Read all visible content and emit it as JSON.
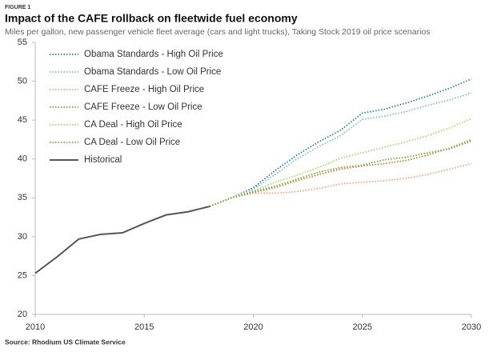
{
  "chart_data": {
    "type": "line",
    "figure_label": "FIGURE 1",
    "title": "Impact of the CAFE rollback on fleetwide fuel economy",
    "subtitle": "Miles per gallon, new passenger vehicle fleet average (cars and light trucks), Taking Stock 2019 oil price scenarios",
    "source": "Source: Rhodium US Climate Service",
    "x": [
      2010,
      2011,
      2012,
      2013,
      2014,
      2015,
      2016,
      2017,
      2018,
      2019,
      2020,
      2021,
      2022,
      2023,
      2024,
      2025,
      2026,
      2027,
      2028,
      2029,
      2030
    ],
    "xlim": [
      2010,
      2030
    ],
    "xticks": [
      2010,
      2015,
      2020,
      2025,
      2030
    ],
    "ylim": [
      20,
      55
    ],
    "yticks": [
      20,
      25,
      30,
      35,
      40,
      45,
      50,
      55
    ],
    "grid": false,
    "legend": "upper left",
    "series": [
      {
        "name": "Obama Standards - High Oil Price",
        "color": "#2a7ab0",
        "style": "dotted",
        "values": [
          null,
          null,
          null,
          null,
          null,
          null,
          null,
          null,
          33.9,
          35.0,
          36.3,
          38.5,
          40.5,
          42.2,
          43.7,
          45.9,
          46.4,
          47.2,
          48.1,
          49.1,
          50.3
        ]
      },
      {
        "name": "Obama Standards - Low Oil Price",
        "color": "#86b8dc",
        "style": "dotted",
        "values": [
          null,
          null,
          null,
          null,
          null,
          null,
          null,
          null,
          33.9,
          35.0,
          36.1,
          38.0,
          40.0,
          41.6,
          43.0,
          45.1,
          45.5,
          46.1,
          46.9,
          47.6,
          48.5
        ]
      },
      {
        "name": "CAFE Freeze - High Oil Price",
        "color": "#f4a582",
        "style": "dotted",
        "values": [
          null,
          null,
          null,
          null,
          null,
          null,
          null,
          null,
          33.9,
          35.0,
          35.6,
          35.6,
          35.8,
          36.2,
          36.8,
          37.0,
          37.2,
          37.5,
          38.0,
          38.7,
          39.4
        ]
      },
      {
        "name": "CAFE Freeze - Low Oil Price",
        "color": "#d9782d",
        "style": "dotted",
        "values": [
          null,
          null,
          null,
          null,
          null,
          null,
          null,
          null,
          33.9,
          35.0,
          35.7,
          36.3,
          37.2,
          38.0,
          38.7,
          39.1,
          39.4,
          39.8,
          40.5,
          41.4,
          42.5
        ]
      },
      {
        "name": "CA Deal - High Oil Price",
        "color": "#a6d96a",
        "style": "dotted",
        "values": [
          null,
          null,
          null,
          null,
          null,
          null,
          null,
          null,
          33.9,
          35.0,
          35.9,
          37.0,
          37.9,
          38.9,
          40.1,
          40.8,
          41.5,
          42.2,
          43.0,
          44.0,
          45.2
        ]
      },
      {
        "name": "CA Deal - Low Oil Price",
        "color": "#6aae3a",
        "style": "dotted",
        "values": [
          null,
          null,
          null,
          null,
          null,
          null,
          null,
          null,
          33.9,
          35.0,
          35.8,
          36.5,
          37.4,
          38.3,
          38.9,
          39.2,
          39.9,
          40.2,
          40.8,
          41.3,
          42.3
        ]
      },
      {
        "name": "Historical",
        "color": "#555555",
        "style": "solid",
        "values": [
          25.3,
          27.4,
          29.7,
          30.3,
          30.5,
          31.7,
          32.8,
          33.2,
          33.9,
          null,
          null,
          null,
          null,
          null,
          null,
          null,
          null,
          null,
          null,
          null,
          null
        ]
      }
    ]
  }
}
